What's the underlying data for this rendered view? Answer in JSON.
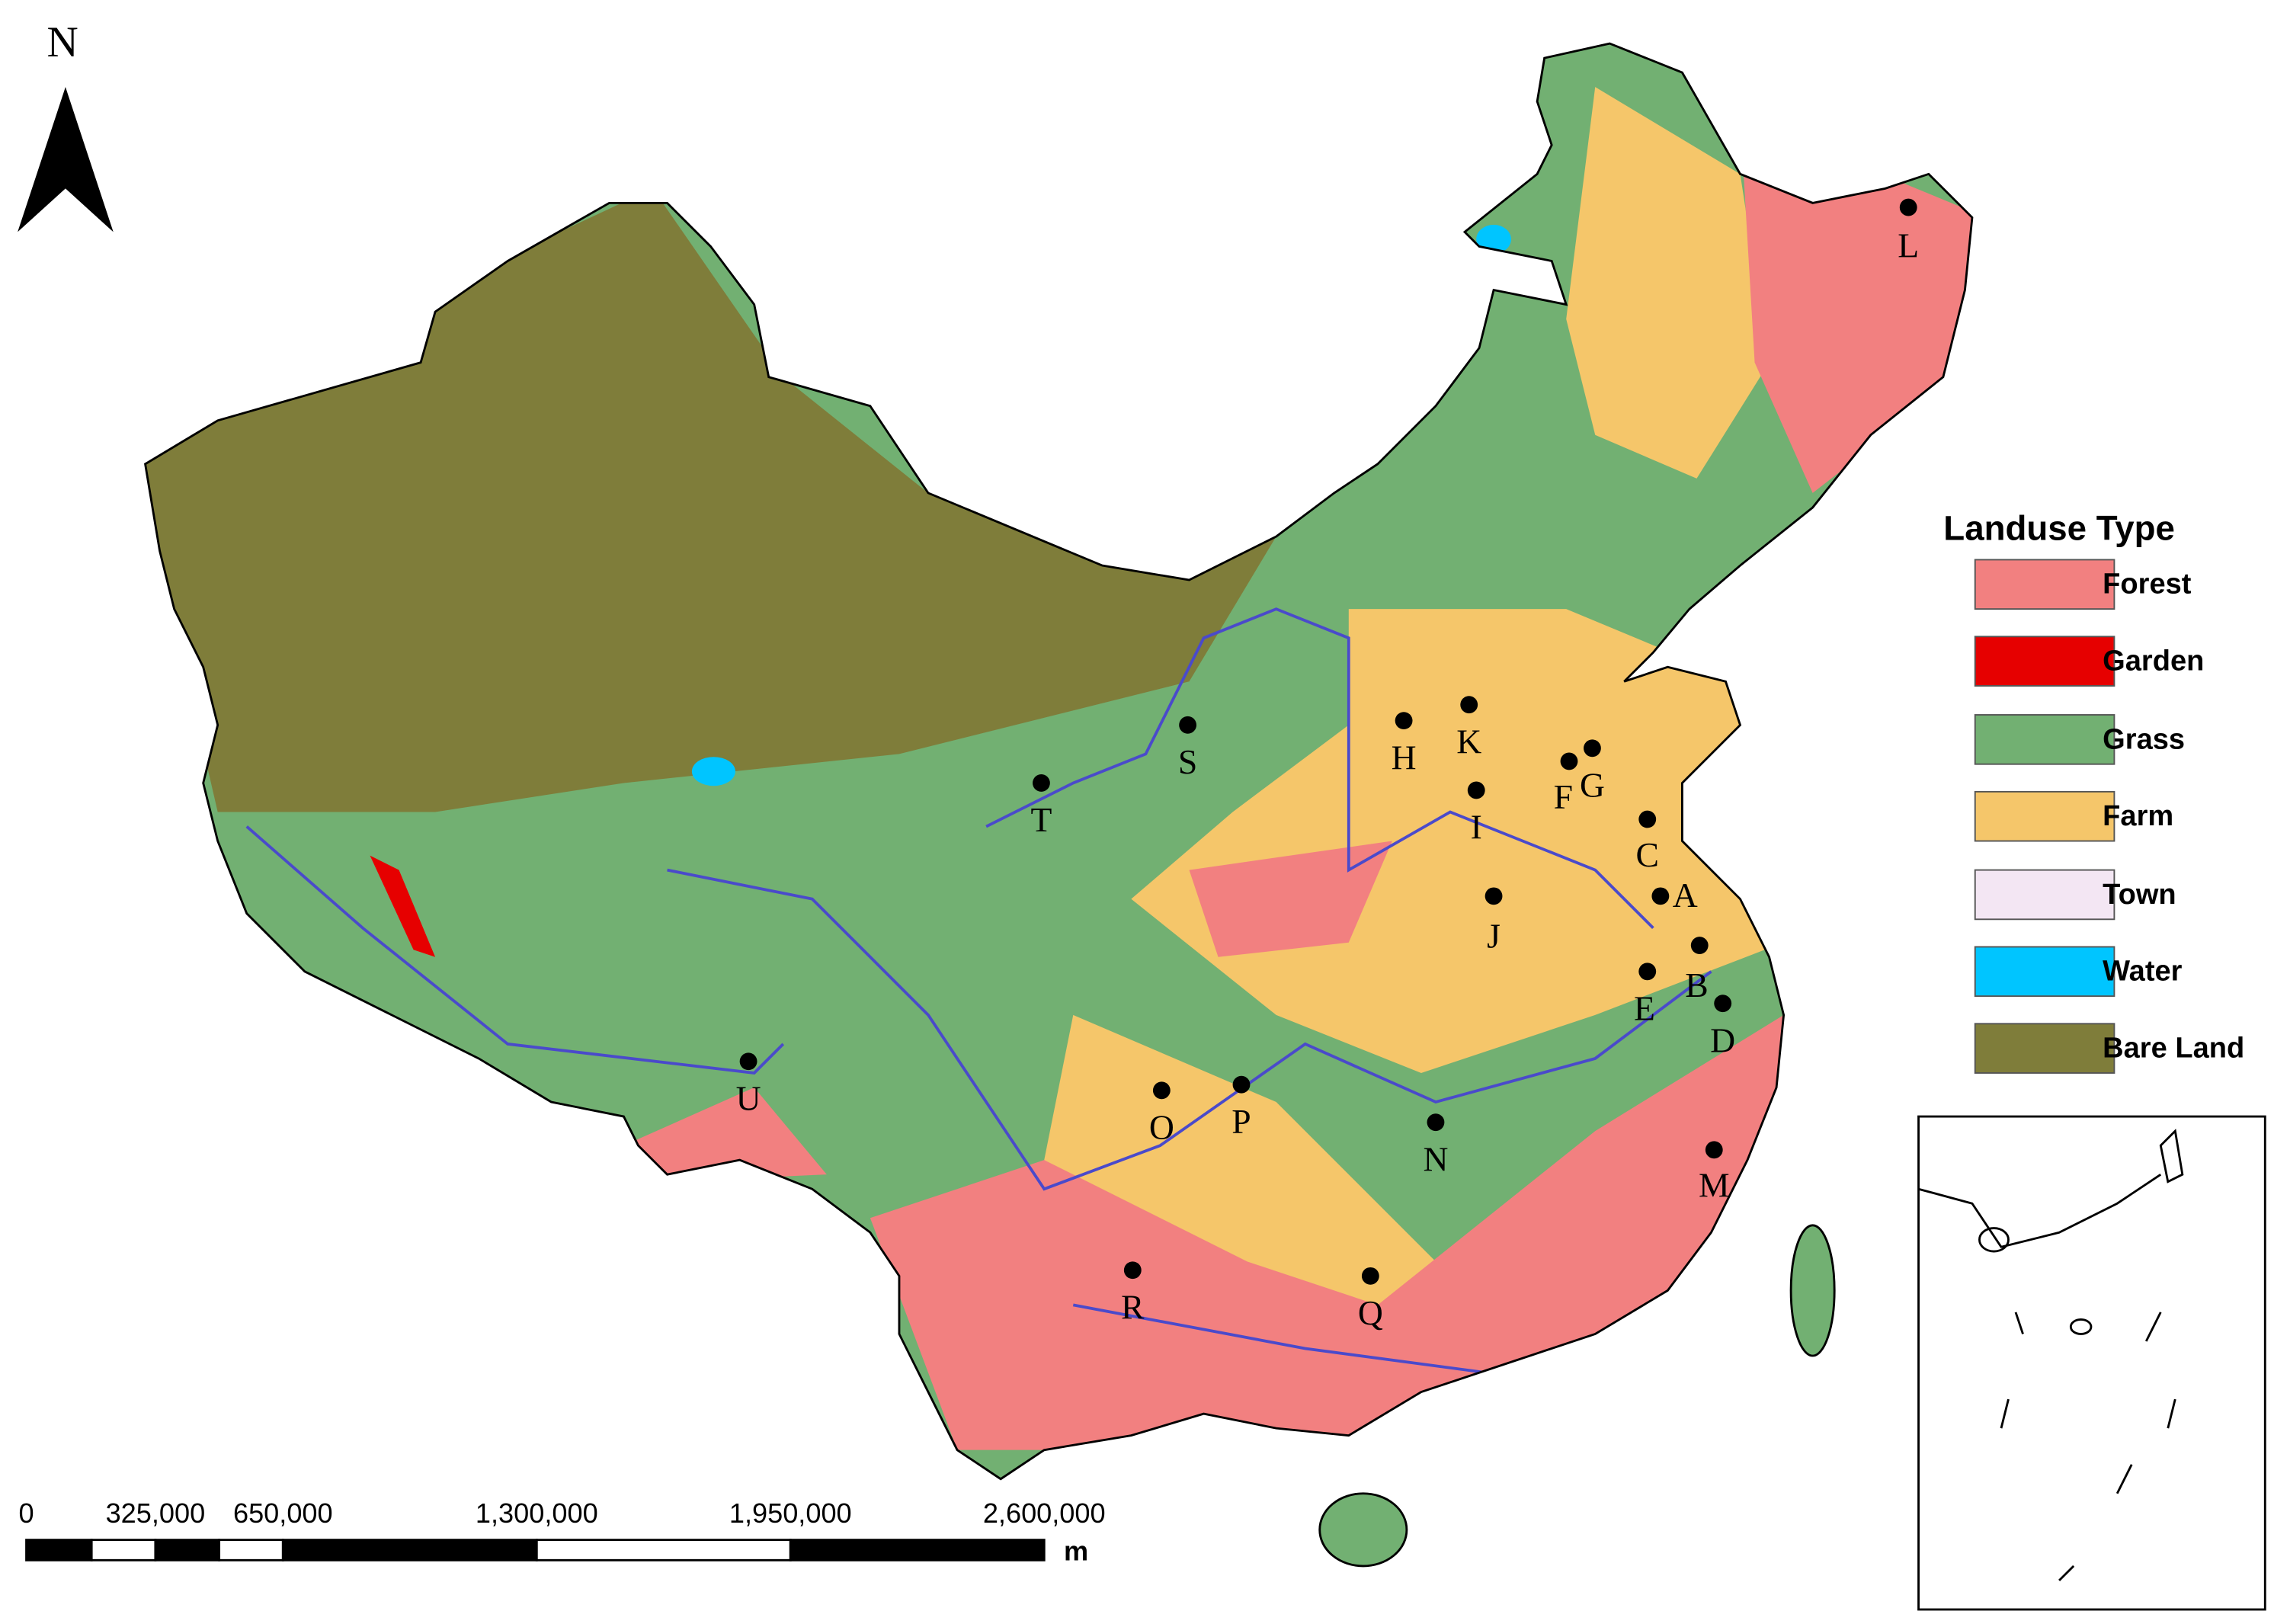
{
  "north_label": "N",
  "scale_bar": {
    "labels": [
      "0",
      "325,000",
      "650,000",
      "1,300,000",
      "1,950,000",
      "2,600,000"
    ],
    "unit": "m"
  },
  "legend": {
    "title": "Landuse Type",
    "items": [
      {
        "label": "Forest",
        "color": "#f28080"
      },
      {
        "label": "Garden",
        "color": "#e60000"
      },
      {
        "label": "Grass",
        "color": "#72b072"
      },
      {
        "label": "Farm",
        "color": "#f5c66a"
      },
      {
        "label": "Town",
        "color": "#f3e6f3"
      },
      {
        "label": "Water",
        "color": "#00c5ff"
      },
      {
        "label": "Bare Land",
        "color": "#7f7d3a"
      }
    ]
  },
  "points": [
    "A",
    "B",
    "C",
    "D",
    "E",
    "F",
    "G",
    "H",
    "I",
    "J",
    "K",
    "L",
    "M",
    "N",
    "O",
    "P",
    "Q",
    "R",
    "S",
    "T",
    "U"
  ]
}
